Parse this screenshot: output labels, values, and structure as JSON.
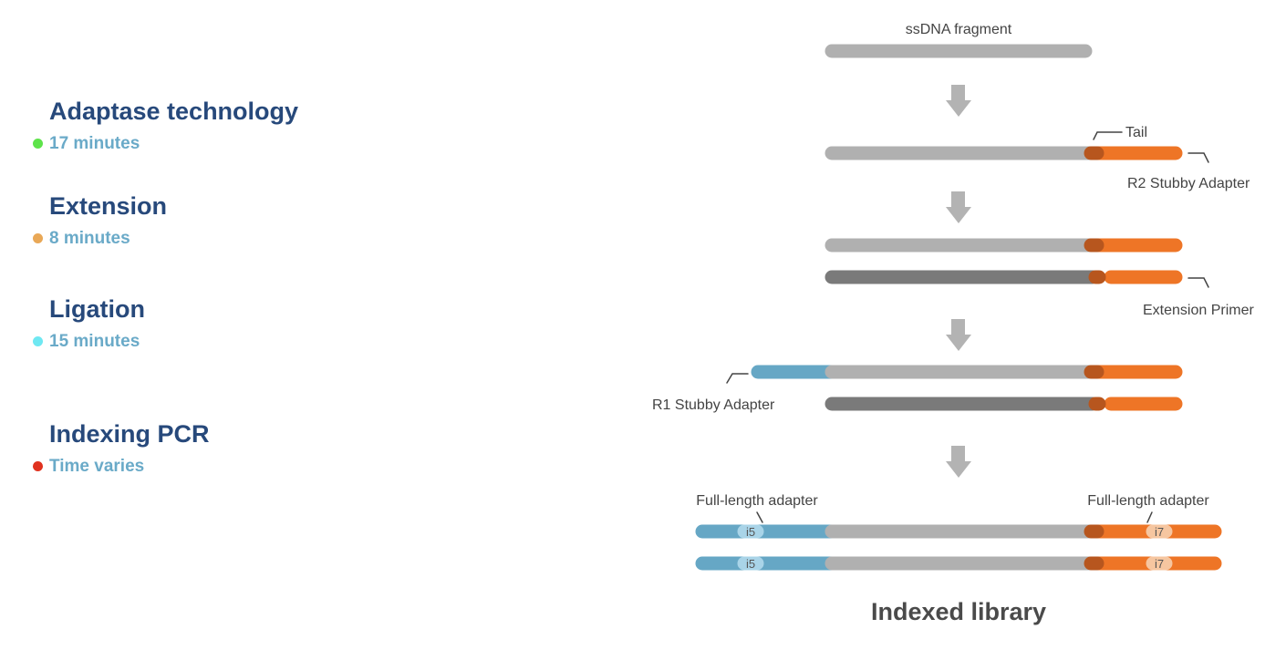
{
  "steps": [
    {
      "title": "Adaptase technology",
      "time": "17 minutes",
      "dot_color": "#5ee34a"
    },
    {
      "title": "Extension",
      "time": "8 minutes",
      "dot_color": "#e9a857"
    },
    {
      "title": "Ligation",
      "time": "15 minutes",
      "dot_color": "#6fe8f2"
    },
    {
      "title": "Indexing PCR",
      "time": "Time varies",
      "dot_color": "#e0321f"
    }
  ],
  "diagram": {
    "labels": {
      "ssdna": "ssDNA fragment",
      "tail": "Tail",
      "r2": "R2 Stubby Adapter",
      "extension_primer": "Extension Primer",
      "r1": "R1 Stubby Adapter",
      "full_left": "Full-length adapter",
      "full_right": "Full-length adapter",
      "i5": "i5",
      "i7": "i7"
    },
    "caption": "Indexed library"
  },
  "colors": {
    "title": "#27497b",
    "time": "#6aaac8",
    "fragment": "#b0b0b0",
    "complement": "#7a7a7a",
    "adapter_orange": "#ee7526",
    "tail_dark": "#b7561e",
    "adapter_blue": "#66a7c5",
    "arrow": "#b3b3b3"
  }
}
